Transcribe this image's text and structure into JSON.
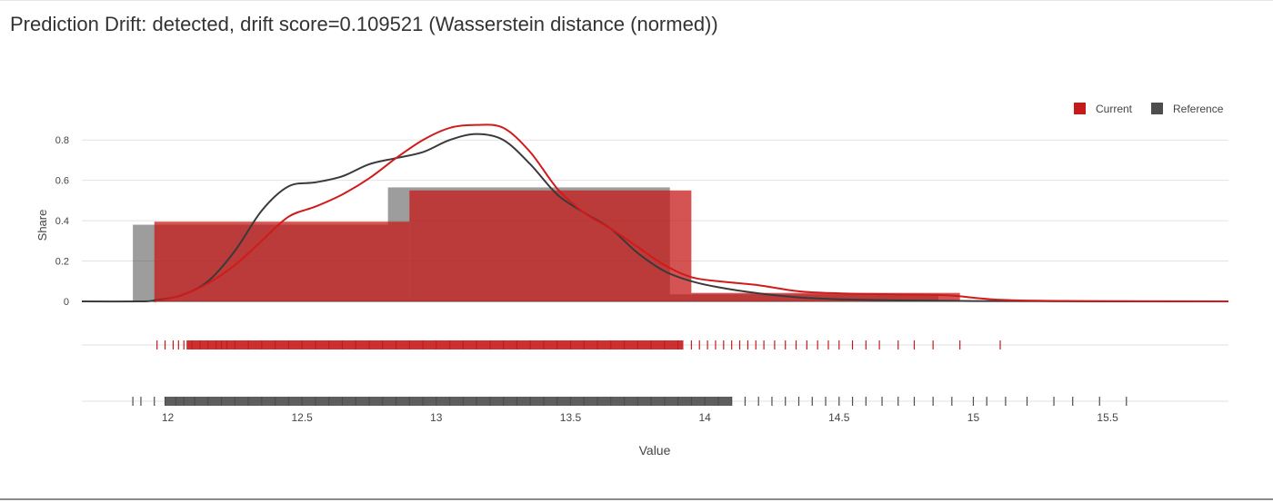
{
  "title": "Prediction Drift: detected, drift score=0.109521 (Wasserstein distance (normed))",
  "chart_data": {
    "type": "bar",
    "xlabel": "Value",
    "ylabel": "Share",
    "xlim": [
      11.68,
      15.95
    ],
    "ylim": [
      0,
      0.9
    ],
    "x_ticks": [
      "12",
      "12.5",
      "13",
      "13.5",
      "14",
      "14.5",
      "15",
      "15.5"
    ],
    "x_tick_values": [
      12,
      12.5,
      13,
      13.5,
      14,
      14.5,
      15,
      15.5
    ],
    "y_ticks": [
      "0",
      "0.2",
      "0.4",
      "0.6",
      "0.8"
    ],
    "y_tick_values": [
      0,
      0.2,
      0.4,
      0.6,
      0.8
    ],
    "grid": true,
    "legend": "top-right",
    "series": [
      {
        "name": "Current",
        "color": "#c61a1a",
        "histogram": [
          {
            "x0": 11.95,
            "x1": 12.9,
            "y": 0.395
          },
          {
            "x0": 12.9,
            "x1": 13.95,
            "y": 0.55
          },
          {
            "x0": 13.95,
            "x1": 14.95,
            "y": 0.042
          }
        ],
        "density": [
          [
            11.95,
            0.0
          ],
          [
            12.05,
            0.03
          ],
          [
            12.15,
            0.09
          ],
          [
            12.25,
            0.18
          ],
          [
            12.35,
            0.3
          ],
          [
            12.45,
            0.42
          ],
          [
            12.55,
            0.47
          ],
          [
            12.65,
            0.53
          ],
          [
            12.75,
            0.61
          ],
          [
            12.85,
            0.71
          ],
          [
            12.95,
            0.8
          ],
          [
            13.05,
            0.86
          ],
          [
            13.15,
            0.875
          ],
          [
            13.25,
            0.86
          ],
          [
            13.35,
            0.74
          ],
          [
            13.45,
            0.56
          ],
          [
            13.55,
            0.44
          ],
          [
            13.65,
            0.36
          ],
          [
            13.75,
            0.27
          ],
          [
            13.85,
            0.18
          ],
          [
            13.95,
            0.12
          ],
          [
            14.05,
            0.1
          ],
          [
            14.2,
            0.08
          ],
          [
            14.35,
            0.05
          ],
          [
            14.5,
            0.04
          ],
          [
            14.7,
            0.035
          ],
          [
            14.9,
            0.03
          ],
          [
            15.1,
            0.008
          ],
          [
            15.4,
            0.002
          ],
          [
            15.95,
            0.0
          ]
        ],
        "rug": [
          11.96,
          11.99,
          12.02,
          12.04,
          12.06,
          12.09,
          12.12,
          12.15,
          12.18,
          12.2,
          12.22,
          12.25,
          12.3,
          12.35,
          12.4,
          12.45,
          12.5,
          12.55,
          12.6,
          12.65,
          12.7,
          12.75,
          12.8,
          12.85,
          12.9,
          12.95,
          13.0,
          13.05,
          13.1,
          13.15,
          13.2,
          13.25,
          13.3,
          13.35,
          13.4,
          13.45,
          13.5,
          13.55,
          13.6,
          13.65,
          13.7,
          13.75,
          13.8,
          13.85,
          13.9,
          13.95,
          13.98,
          14.01,
          14.04,
          14.07,
          14.1,
          14.13,
          14.16,
          14.19,
          14.22,
          14.26,
          14.3,
          14.34,
          14.38,
          14.42,
          14.46,
          14.5,
          14.55,
          14.6,
          14.65,
          14.72,
          14.78,
          14.85,
          14.95,
          15.1
        ]
      },
      {
        "name": "Reference",
        "color": "#4d4d4d",
        "histogram": [
          {
            "x0": 11.87,
            "x1": 12.82,
            "y": 0.38
          },
          {
            "x0": 12.82,
            "x1": 13.87,
            "y": 0.565
          },
          {
            "x0": 13.87,
            "x1": 14.87,
            "y": 0.035
          }
        ],
        "density": [
          [
            11.68,
            0.0
          ],
          [
            11.9,
            0.0
          ],
          [
            11.95,
            0.005
          ],
          [
            12.05,
            0.03
          ],
          [
            12.15,
            0.1
          ],
          [
            12.25,
            0.25
          ],
          [
            12.35,
            0.45
          ],
          [
            12.45,
            0.57
          ],
          [
            12.55,
            0.59
          ],
          [
            12.65,
            0.62
          ],
          [
            12.75,
            0.68
          ],
          [
            12.85,
            0.71
          ],
          [
            12.95,
            0.74
          ],
          [
            13.05,
            0.8
          ],
          [
            13.15,
            0.83
          ],
          [
            13.25,
            0.8
          ],
          [
            13.35,
            0.68
          ],
          [
            13.45,
            0.53
          ],
          [
            13.55,
            0.44
          ],
          [
            13.65,
            0.36
          ],
          [
            13.75,
            0.24
          ],
          [
            13.85,
            0.15
          ],
          [
            13.95,
            0.1
          ],
          [
            14.05,
            0.07
          ],
          [
            14.2,
            0.04
          ],
          [
            14.35,
            0.02
          ],
          [
            14.5,
            0.01
          ],
          [
            14.7,
            0.005
          ],
          [
            15.0,
            0.002
          ],
          [
            15.5,
            0.0
          ],
          [
            15.95,
            0.0
          ]
        ],
        "rug": [
          11.87,
          11.9,
          11.95,
          11.99,
          12.03,
          12.06,
          12.1,
          12.15,
          12.2,
          12.25,
          12.3,
          12.35,
          12.4,
          12.45,
          12.5,
          12.55,
          12.6,
          12.65,
          12.7,
          12.75,
          12.8,
          12.85,
          12.9,
          12.95,
          13.0,
          13.05,
          13.1,
          13.15,
          13.2,
          13.25,
          13.3,
          13.35,
          13.4,
          13.45,
          13.5,
          13.55,
          13.6,
          13.65,
          13.7,
          13.75,
          13.8,
          13.85,
          13.9,
          13.95,
          14.0,
          14.05,
          14.1,
          14.15,
          14.2,
          14.25,
          14.3,
          14.35,
          14.4,
          14.45,
          14.5,
          14.55,
          14.6,
          14.66,
          14.72,
          14.78,
          14.85,
          14.92,
          15.0,
          15.05,
          15.12,
          15.2,
          15.3,
          15.37,
          15.47,
          15.57
        ]
      }
    ]
  }
}
